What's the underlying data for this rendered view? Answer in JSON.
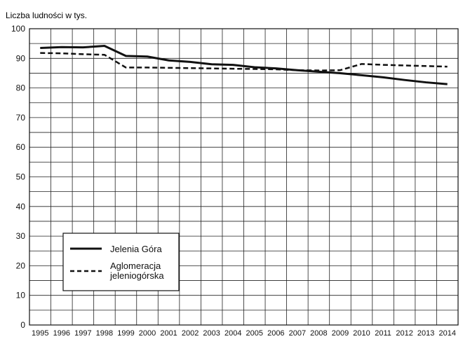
{
  "chart_data": {
    "type": "line",
    "title": "",
    "ylabel": "Liczba ludności w tys.",
    "xlabel": "",
    "ylim": [
      0,
      100
    ],
    "yticks": [
      0,
      10,
      20,
      30,
      40,
      50,
      60,
      70,
      80,
      90,
      100
    ],
    "grid": true,
    "legend_position": "bottom-left",
    "x": [
      "1995",
      "1996",
      "1997",
      "1998",
      "1999",
      "2000",
      "2001",
      "2002",
      "2003",
      "2004",
      "2005",
      "2006",
      "2007",
      "2008",
      "2009",
      "2010",
      "2011",
      "2012",
      "2013",
      "2014"
    ],
    "series": [
      {
        "name": "Jelenia Góra",
        "style": "solid",
        "color": "#111111",
        "values": [
          93.5,
          93.8,
          93.7,
          94.2,
          90.8,
          90.6,
          89.3,
          88.8,
          88.0,
          87.8,
          87.0,
          86.6,
          86.0,
          85.5,
          85.0,
          84.3,
          83.6,
          82.7,
          81.9,
          81.3
        ]
      },
      {
        "name": "Aglomeracja jeleniogórska",
        "style": "dashed",
        "color": "#111111",
        "values": [
          91.8,
          91.7,
          91.4,
          91.2,
          86.9,
          86.9,
          86.8,
          86.7,
          86.6,
          86.5,
          86.4,
          86.3,
          86.0,
          85.9,
          86.0,
          88.1,
          87.8,
          87.6,
          87.4,
          87.2
        ]
      }
    ]
  }
}
